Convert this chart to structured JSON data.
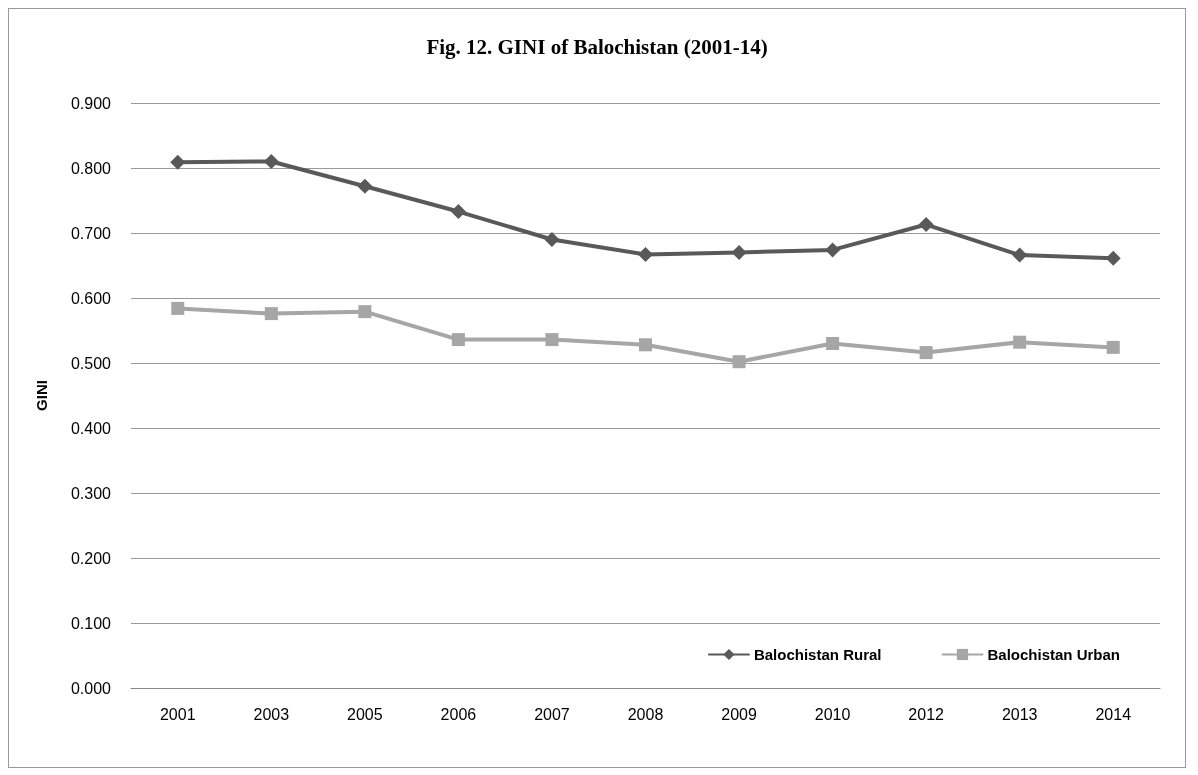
{
  "chart_data": {
    "type": "line",
    "title": "Fig. 12. GINI of Balochistan (2001-14)",
    "ylabel": "GINI",
    "categories": [
      "2001",
      "2003",
      "2005",
      "2006",
      "2007",
      "2008",
      "2009",
      "2010",
      "2012",
      "2013",
      "2014"
    ],
    "series": [
      {
        "name": "Balochistan Rural",
        "color": "#595959",
        "marker": "diamond",
        "values": [
          0.809,
          0.81,
          0.772,
          0.733,
          0.69,
          0.667,
          0.67,
          0.674,
          0.713,
          0.666,
          0.661
        ]
      },
      {
        "name": "Balochistan Urban",
        "color": "#a6a6a6",
        "marker": "square",
        "values": [
          0.584,
          0.576,
          0.579,
          0.536,
          0.536,
          0.528,
          0.502,
          0.53,
          0.516,
          0.532,
          0.524
        ]
      }
    ],
    "ylim": [
      0,
      0.9
    ],
    "yticks": [
      {
        "value": 0,
        "label": "0.000"
      },
      {
        "value": 0.1,
        "label": "0.100"
      },
      {
        "value": 0.2,
        "label": "0.200"
      },
      {
        "value": 0.3,
        "label": "0.300"
      },
      {
        "value": 0.4,
        "label": "0.400"
      },
      {
        "value": 0.5,
        "label": "0.500"
      },
      {
        "value": 0.6,
        "label": "0.600"
      },
      {
        "value": 0.7,
        "label": "0.700"
      },
      {
        "value": 0.8,
        "label": "0.800"
      },
      {
        "value": 0.9,
        "label": "0.900"
      }
    ],
    "grid": "y",
    "legend": "bottom right",
    "line_style": "solid"
  }
}
